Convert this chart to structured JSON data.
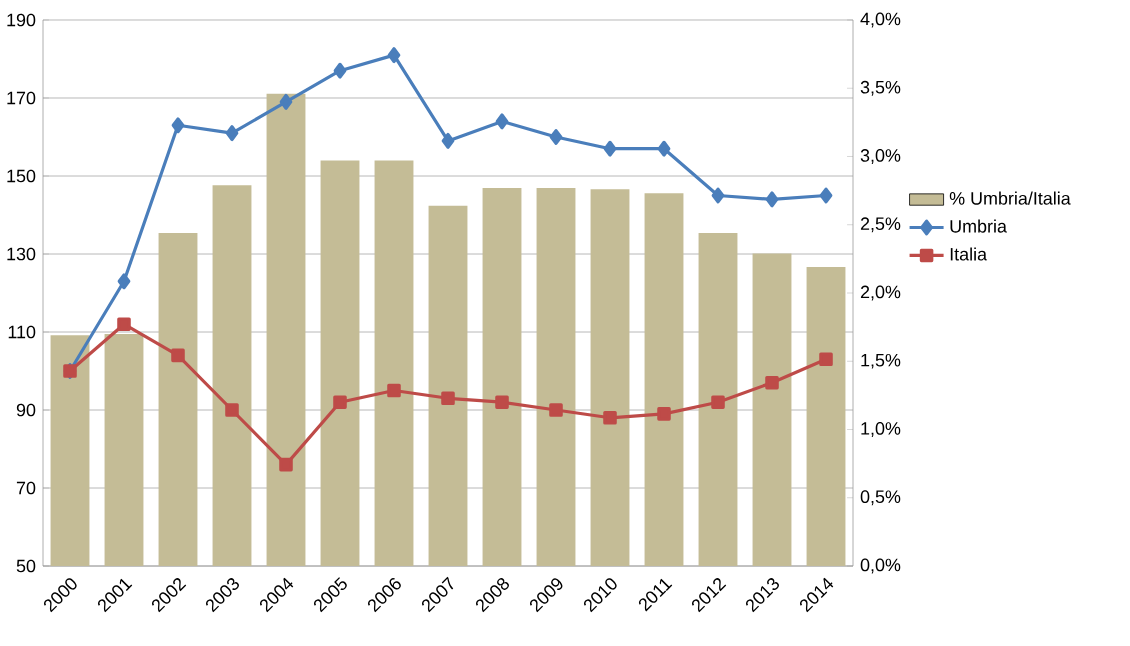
{
  "chart_data": {
    "type": "line",
    "categories": [
      "2000",
      "2001",
      "2002",
      "2003",
      "2004",
      "2005",
      "2006",
      "2007",
      "2008",
      "2009",
      "2010",
      "2011",
      "2012",
      "2013",
      "2014"
    ],
    "series": [
      {
        "name": "% Umbria/Italia",
        "type": "bar",
        "axis": "y2",
        "color": "#c4bc96",
        "values": [
          1.69,
          1.7,
          2.44,
          2.79,
          3.46,
          2.97,
          2.97,
          2.64,
          2.77,
          2.77,
          2.76,
          2.73,
          2.44,
          2.29,
          2.19
        ]
      },
      {
        "name": "Umbria",
        "marker": "diamond",
        "color": "#4a7ebb",
        "values": [
          100,
          123,
          163,
          161,
          169,
          177,
          181,
          159,
          164,
          160,
          157,
          157,
          145,
          144,
          145
        ]
      },
      {
        "name": "Italia",
        "marker": "square",
        "color": "#be4b48",
        "values": [
          100,
          112,
          104,
          90,
          76,
          92,
          95,
          93,
          92,
          90,
          88,
          89,
          92,
          97,
          103
        ]
      }
    ],
    "ylim": [
      50,
      190
    ],
    "yticks": [
      50,
      70,
      90,
      110,
      130,
      150,
      170,
      190
    ],
    "y2lim": [
      0,
      4
    ],
    "y2ticks": [
      {
        "value": 0,
        "label": "0,0%"
      },
      {
        "value": 0.5,
        "label": "0,5%"
      },
      {
        "value": 1,
        "label": "1,0%"
      },
      {
        "value": 1.5,
        "label": "1,5%"
      },
      {
        "value": 2,
        "label": "2,0%"
      },
      {
        "value": 2.5,
        "label": "2,5%"
      },
      {
        "value": 3,
        "label": "3,0%"
      },
      {
        "value": 3.5,
        "label": "3,5%"
      },
      {
        "value": 4,
        "label": "4,0%"
      }
    ],
    "grid": "y",
    "legend": "right"
  }
}
